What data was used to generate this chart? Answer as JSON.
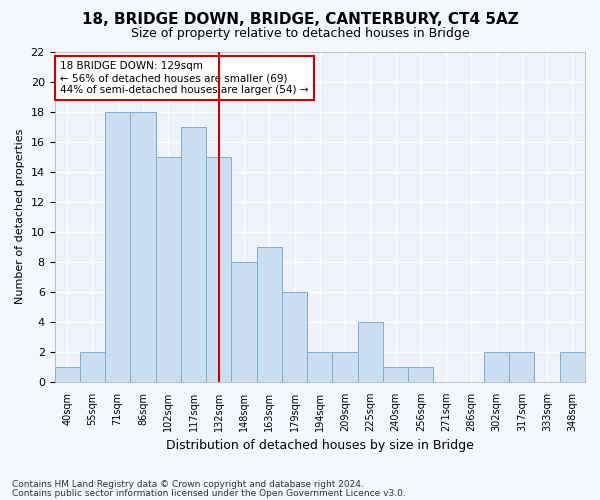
{
  "title": "18, BRIDGE DOWN, BRIDGE, CANTERBURY, CT4 5AZ",
  "subtitle": "Size of property relative to detached houses in Bridge",
  "xlabel": "Distribution of detached houses by size in Bridge",
  "ylabel": "Number of detached properties",
  "categories": [
    "40sqm",
    "55sqm",
    "71sqm",
    "86sqm",
    "102sqm",
    "117sqm",
    "132sqm",
    "148sqm",
    "163sqm",
    "179sqm",
    "194sqm",
    "209sqm",
    "225sqm",
    "240sqm",
    "256sqm",
    "271sqm",
    "286sqm",
    "302sqm",
    "317sqm",
    "333sqm",
    "348sqm"
  ],
  "values": [
    1,
    2,
    18,
    18,
    15,
    17,
    15,
    8,
    9,
    6,
    2,
    2,
    4,
    1,
    1,
    0,
    0,
    2,
    2,
    0,
    2
  ],
  "bar_color": "#ccdff2",
  "bar_edge_color": "#7bafd4",
  "vline_index": 6,
  "vline_color": "#cc0000",
  "ylim": [
    0,
    22
  ],
  "yticks": [
    0,
    2,
    4,
    6,
    8,
    10,
    12,
    14,
    16,
    18,
    20,
    22
  ],
  "annotation_text": "18 BRIDGE DOWN: 129sqm\n← 56% of detached houses are smaller (69)\n44% of semi-detached houses are larger (54) →",
  "plot_bg_color": "#eef2fa",
  "fig_bg_color": "#f5f7ff",
  "grid_color": "#ffffff",
  "footer_line1": "Contains HM Land Registry data © Crown copyright and database right 2024.",
  "footer_line2": "Contains public sector information licensed under the Open Government Licence v3.0.",
  "title_fontsize": 11,
  "subtitle_fontsize": 9,
  "ylabel_fontsize": 8,
  "xlabel_fontsize": 9,
  "annot_fontsize": 7.5,
  "footer_fontsize": 6.5
}
